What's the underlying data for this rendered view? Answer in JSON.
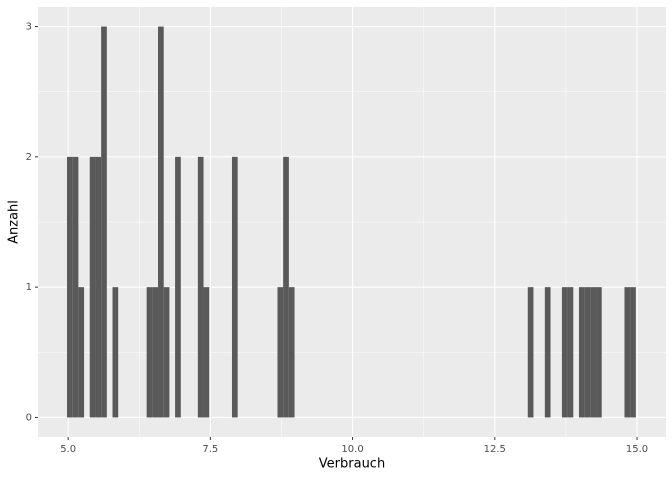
{
  "chart_data": {
    "type": "histogram",
    "x_label": "Verbrauch",
    "y_label": "Anzahl",
    "bins": [
      4.98,
      5.08,
      5.18,
      5.28,
      5.38,
      5.48,
      5.58,
      5.68,
      5.78,
      5.88,
      5.98,
      6.08,
      6.18,
      6.28,
      6.38,
      6.48,
      6.58,
      6.68,
      6.78,
      6.88,
      6.98,
      7.08,
      7.18,
      7.28,
      7.38,
      7.48,
      7.58,
      7.68,
      7.78,
      7.88,
      7.98,
      8.08,
      8.18,
      8.28,
      8.38,
      8.48,
      8.58,
      8.68,
      8.78,
      8.88,
      8.98,
      9.08,
      9.18,
      9.28,
      9.38,
      9.48,
      9.58,
      9.68,
      9.78,
      9.88,
      9.98,
      10.08,
      10.18,
      10.28,
      10.38,
      10.48,
      10.58,
      10.68,
      10.78,
      10.88,
      10.98,
      11.08,
      11.18,
      11.28,
      11.38,
      11.48,
      11.58,
      11.68,
      11.78,
      11.88,
      11.98,
      12.08,
      12.18,
      12.28,
      12.38,
      12.48,
      12.58,
      12.68,
      12.78,
      12.88,
      12.98,
      13.08,
      13.18,
      13.28,
      13.38,
      13.48,
      13.58,
      13.68,
      13.78,
      13.88,
      13.98,
      14.08,
      14.18,
      14.28,
      14.38,
      14.48,
      14.58,
      14.68,
      14.78,
      14.88,
      14.98
    ],
    "values": [
      2,
      2,
      1,
      0,
      2,
      2,
      3,
      0,
      1,
      0,
      0,
      0,
      0,
      0,
      1,
      1,
      3,
      1,
      0,
      2,
      0,
      0,
      0,
      2,
      1,
      0,
      0,
      0,
      0,
      2,
      0,
      0,
      0,
      0,
      0,
      0,
      0,
      1,
      2,
      1,
      0,
      0,
      0,
      0,
      0,
      0,
      0,
      0,
      0,
      0,
      0,
      0,
      0,
      0,
      0,
      0,
      0,
      0,
      0,
      0,
      0,
      0,
      0,
      0,
      0,
      0,
      0,
      0,
      0,
      0,
      0,
      0,
      0,
      0,
      0,
      0,
      0,
      0,
      0,
      0,
      0,
      1,
      0,
      0,
      1,
      0,
      0,
      1,
      1,
      0,
      1,
      1,
      1,
      1,
      0,
      0,
      0,
      0,
      1,
      1
    ],
    "color": "#595959",
    "xlim": [
      4.47,
      15.51
    ],
    "xticks": [
      {
        "value": 5.0,
        "label": "5.0"
      },
      7.5,
      {
        "value": 10.0,
        "label": "10.0"
      },
      12.5,
      {
        "value": 15.0,
        "label": "15.0"
      }
    ],
    "ylim": [
      -0.15,
      3.15
    ],
    "yticks": [
      0,
      1,
      2,
      3
    ],
    "grid": true
  }
}
